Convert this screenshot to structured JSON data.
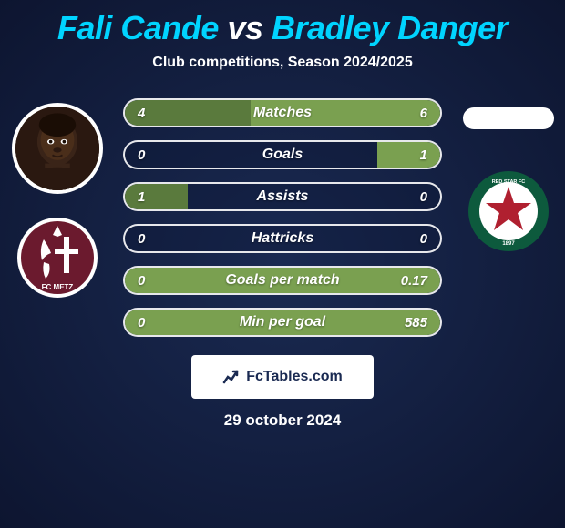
{
  "title": {
    "player1": "Fali Cande",
    "vs": "vs",
    "player2": "Bradley Danger"
  },
  "subtitle": "Club competitions, Season 2024/2025",
  "colors": {
    "title_accent": "#00d4ff",
    "bg_outer": "#0d1530",
    "bg_inner": "#1a2a52",
    "bar_fill_p1": "#5a7a3d",
    "bar_fill_p2": "#7aa050",
    "bar_border": "rgba(255,255,255,0.9)",
    "text": "#ffffff"
  },
  "player1": {
    "name": "Fali Cande",
    "club": "FC Metz",
    "club_colors": {
      "bg": "#6b1a2e",
      "cross": "#ffffff",
      "dragon": "#ffffff"
    }
  },
  "player2": {
    "name": "Bradley Danger",
    "club": "Red Star FC",
    "club_colors": {
      "ring": "#0d5a3d",
      "star": "#b02030",
      "bg": "#ffffff"
    }
  },
  "stats": [
    {
      "label": "Matches",
      "p1": "4",
      "p2": "6",
      "p1_pct": 40,
      "p2_pct": 60
    },
    {
      "label": "Goals",
      "p1": "0",
      "p2": "1",
      "p1_pct": 0,
      "p2_pct": 20
    },
    {
      "label": "Assists",
      "p1": "1",
      "p2": "0",
      "p1_pct": 20,
      "p2_pct": 0
    },
    {
      "label": "Hattricks",
      "p1": "0",
      "p2": "0",
      "p1_pct": 0,
      "p2_pct": 0
    },
    {
      "label": "Goals per match",
      "p1": "0",
      "p2": "0.17",
      "p1_pct": 0,
      "p2_pct": 100
    },
    {
      "label": "Min per goal",
      "p1": "0",
      "p2": "585",
      "p1_pct": 0,
      "p2_pct": 100
    }
  ],
  "footer_brand": "FcTables.com",
  "date": "29 october 2024"
}
